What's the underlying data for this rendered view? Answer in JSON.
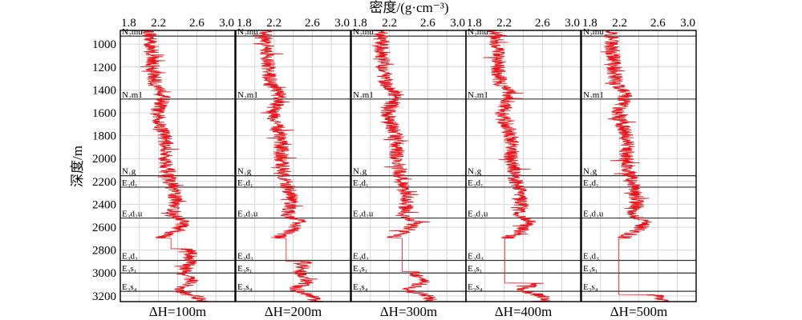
{
  "chart_data": {
    "type": "line",
    "xlabel": "密度/(g·cm⁻³)",
    "ylabel": "深度/m",
    "xlim": [
      1.8,
      3.0
    ],
    "ylim": [
      3250,
      880
    ],
    "x_ticks": [
      "1.8",
      "2.2",
      "2.6",
      "3.0"
    ],
    "y_ticks": [
      "1000",
      "1200",
      "1400",
      "1600",
      "1800",
      "2000",
      "2200",
      "2400",
      "2600",
      "2800",
      "3000",
      "3200"
    ],
    "grid": true,
    "panels": [
      {
        "label": "ΔH=100m",
        "gaps": [
          [
            2700,
            2790
          ]
        ]
      },
      {
        "label": "ΔH=200m",
        "gaps": [
          [
            2700,
            2900
          ]
        ]
      },
      {
        "label": "ΔH=300m",
        "gaps": [
          [
            2700,
            2990
          ]
        ]
      },
      {
        "label": "ΔH=400m",
        "gaps": [
          [
            2700,
            3090
          ]
        ]
      },
      {
        "label": "ΔH=500m",
        "gaps": [
          [
            2700,
            3190
          ]
        ]
      }
    ],
    "formations": [
      {
        "name": "N₂mu",
        "top": 930
      },
      {
        "name": "N₂m1",
        "top": 1480
      },
      {
        "name": "N₁g",
        "top": 2150
      },
      {
        "name": "E₃d₁",
        "top": 2250
      },
      {
        "name": "E₃d₂u",
        "top": 2520
      },
      {
        "name": "E₃d₃",
        "top": 2890
      },
      {
        "name": "E₃s₁",
        "top": 3000
      },
      {
        "name": "E₃s₄",
        "top": 3160
      }
    ],
    "density_trend": [
      {
        "depth": 880,
        "density": 2.1
      },
      {
        "depth": 1000,
        "density": 2.12
      },
      {
        "depth": 1200,
        "density": 2.14
      },
      {
        "depth": 1350,
        "density": 2.16
      },
      {
        "depth": 1420,
        "density": 2.26
      },
      {
        "depth": 1500,
        "density": 2.24
      },
      {
        "depth": 1600,
        "density": 2.18
      },
      {
        "depth": 1700,
        "density": 2.22
      },
      {
        "depth": 1800,
        "density": 2.27
      },
      {
        "depth": 1900,
        "density": 2.28
      },
      {
        "depth": 2000,
        "density": 2.27
      },
      {
        "depth": 2100,
        "density": 2.3
      },
      {
        "depth": 2200,
        "density": 2.32
      },
      {
        "depth": 2300,
        "density": 2.37
      },
      {
        "depth": 2400,
        "density": 2.38
      },
      {
        "depth": 2500,
        "density": 2.34
      },
      {
        "depth": 2550,
        "density": 2.48
      },
      {
        "depth": 2620,
        "density": 2.4
      },
      {
        "depth": 2690,
        "density": 2.24
      },
      {
        "depth": 2800,
        "density": 2.52
      },
      {
        "depth": 2900,
        "density": 2.54
      },
      {
        "depth": 3000,
        "density": 2.46
      },
      {
        "depth": 3080,
        "density": 2.56
      },
      {
        "depth": 3150,
        "density": 2.38
      },
      {
        "depth": 3200,
        "density": 2.6
      },
      {
        "depth": 3250,
        "density": 2.64
      }
    ],
    "series_color": "#e8141b",
    "formation_line_color": "#333333"
  }
}
